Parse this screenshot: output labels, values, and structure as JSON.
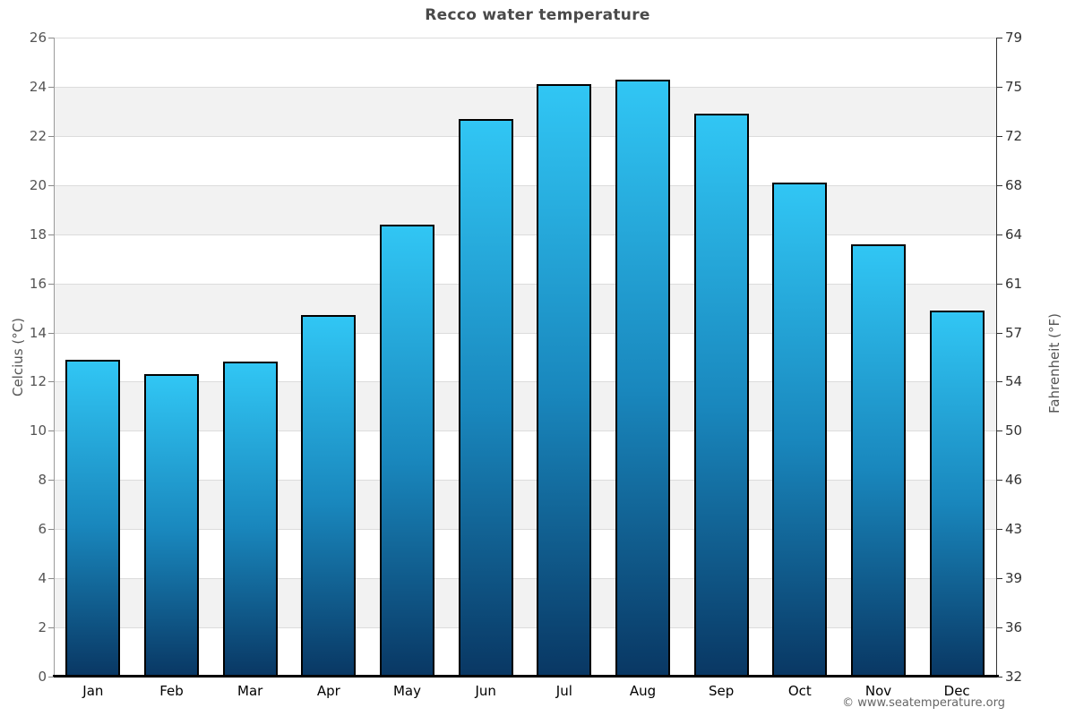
{
  "page": {
    "title": "Recco water temperature",
    "footer": "© www.seatemperature.org"
  },
  "chart_data": {
    "type": "bar",
    "title": "Recco water temperature",
    "categories": [
      "Jan",
      "Feb",
      "Mar",
      "Apr",
      "May",
      "Jun",
      "Jul",
      "Aug",
      "Sep",
      "Oct",
      "Nov",
      "Dec"
    ],
    "values": [
      12.9,
      12.3,
      12.8,
      14.7,
      18.4,
      22.7,
      24.1,
      24.3,
      22.9,
      20.1,
      17.6,
      14.9
    ],
    "unit": "°C",
    "ylabel_left": "Celcius (°C)",
    "ylabel_right": "Fahrenheit (°F)",
    "ylim": [
      0,
      26
    ],
    "yticks_celsius": [
      0,
      2,
      4,
      6,
      8,
      10,
      12,
      14,
      16,
      18,
      20,
      22,
      24,
      26
    ],
    "yticks_fahrenheit": [
      32,
      36,
      39,
      43,
      46,
      50,
      54,
      57,
      61,
      64,
      68,
      72,
      75,
      79
    ],
    "grid": "horizontal-banded",
    "legend": "none",
    "colors": {
      "bar_gradient_top": "#31c6f4",
      "bar_gradient_mid": "#1987bd",
      "bar_gradient_bottom": "#093763",
      "bar_border": "#000000",
      "band_shade": "#f2f2f2",
      "band_plain": "#ffffff",
      "gridline": "#dcdcdc",
      "title_text": "#4a4a4a",
      "axis_text": "#545454"
    }
  }
}
